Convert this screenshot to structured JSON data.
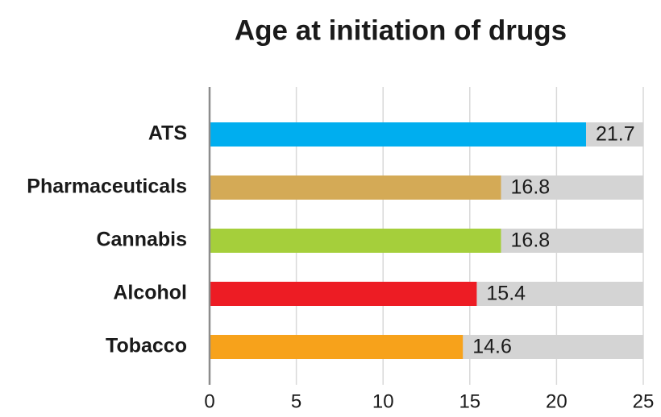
{
  "chart_data": {
    "type": "bar",
    "orientation": "horizontal",
    "title": "Age at initiation of drugs",
    "categories": [
      "ATS",
      "Pharmaceuticals",
      "Cannabis",
      "Alcohol",
      "Tobacco"
    ],
    "values": [
      21.7,
      16.8,
      16.8,
      15.4,
      14.6
    ],
    "colors": [
      "#00aeef",
      "#d4aa56",
      "#a5cf3b",
      "#ed1c24",
      "#f7a21b"
    ],
    "xlim": [
      0,
      25
    ],
    "xticks": [
      0,
      5,
      10,
      15,
      20,
      25
    ],
    "grid": true
  }
}
